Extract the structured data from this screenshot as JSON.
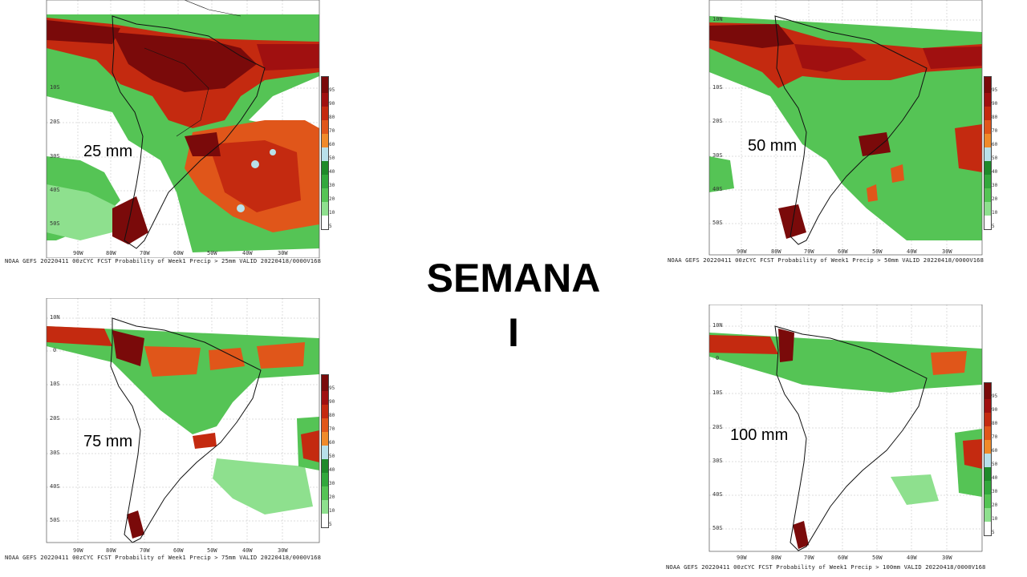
{
  "center": {
    "title": "SEMANA",
    "subtitle": "I"
  },
  "colorbar": {
    "ticks": [
      "95",
      "90",
      "80",
      "70",
      "60",
      "50",
      "40",
      "30",
      "20",
      "10",
      "5"
    ],
    "colors": [
      "#7a0a0a",
      "#a01010",
      "#c42a10",
      "#e0561a",
      "#f08a2a",
      "#f7b24a",
      "#b8e0ea",
      "#1f8a2a",
      "#32a83c",
      "#55c455",
      "#8ee08e",
      "#ffffff"
    ]
  },
  "lat_labels": {
    "top_left": [
      "10S",
      "20S",
      "30S",
      "40S",
      "50S"
    ],
    "top_right": [
      "10N",
      "10S",
      "20S",
      "30S",
      "40S",
      "50S"
    ],
    "bottom_left": [
      "10N",
      "0",
      "10S",
      "20S",
      "30S",
      "40S",
      "50S"
    ],
    "bottom_right": [
      "10N",
      "0",
      "10S",
      "20S",
      "30S",
      "40S",
      "50S"
    ]
  },
  "lon_labels": [
    "90W",
    "80W",
    "70W",
    "60W",
    "50W",
    "40W",
    "30W"
  ],
  "panels": [
    {
      "label": "25 mm",
      "caption": "NOAA GEFS 20220411 00zCYC FCST Probability of Week1 Precip > 25mm  VALID 20220418/0000V168"
    },
    {
      "label": "50 mm",
      "caption": "NOAA GEFS 20220411 00zCYC FCST Probability of Week1 Precip > 50mm  VALID 20220418/0000V168"
    },
    {
      "label": "75 mm",
      "caption": "NOAA GEFS 20220411 00zCYC FCST Probability of Week1 Precip > 75mm  VALID 20220418/0000V168"
    },
    {
      "label": "100 mm",
      "caption": "NOAA GEFS 20220411 00zCYC FCST Probability of Week1 Precip > 100mm  VALID 20220418/0000V168"
    }
  ]
}
